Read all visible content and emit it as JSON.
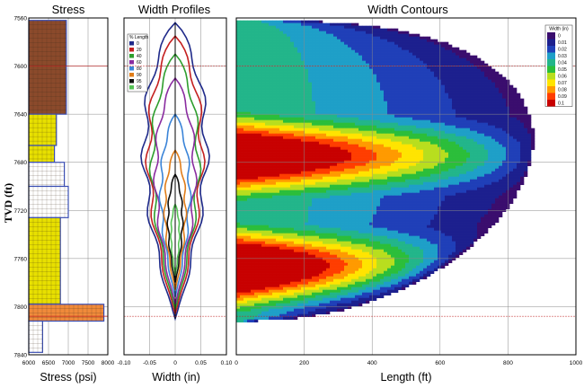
{
  "chart_data": [
    {
      "type": "bar",
      "title": "Stress",
      "xlabel": "Stress (psi)",
      "ylabel": "TVD (ft)",
      "x_ticks": [
        "6000",
        "6500",
        "7000",
        "7500",
        "8000"
      ],
      "y_ticks": [
        "7560",
        "7600",
        "7640",
        "7680",
        "7720",
        "7760",
        "7800",
        "7840"
      ],
      "xlim": [
        6000,
        8000
      ],
      "ylim": [
        7560,
        7840
      ],
      "grid": true,
      "colors": {
        "shale": "#8b4a2b",
        "sand": "#e8e000",
        "zone_top": "#ffffff",
        "base": "#f08a3a",
        "outline": "#3b4fb5"
      },
      "layers": [
        {
          "top": 7562,
          "bottom": 7640,
          "stress": 6950,
          "fill": "shale"
        },
        {
          "top": 7640,
          "bottom": 7666,
          "stress": 6700,
          "fill": "sand"
        },
        {
          "top": 7666,
          "bottom": 7680,
          "stress": 6650,
          "fill": "sand"
        },
        {
          "top": 7680,
          "bottom": 7700,
          "stress": 6900,
          "fill": "zone_top"
        },
        {
          "top": 7700,
          "bottom": 7726,
          "stress": 7000,
          "fill": "zone_top"
        },
        {
          "top": 7726,
          "bottom": 7798,
          "stress": 6800,
          "fill": "sand"
        },
        {
          "top": 7798,
          "bottom": 7812,
          "stress": 7900,
          "fill": "base"
        },
        {
          "top": 7812,
          "bottom": 7838,
          "stress": 6350,
          "fill": "zone_top"
        }
      ]
    },
    {
      "type": "line",
      "title": "Width Profiles",
      "xlabel": "Width (in)",
      "x_ticks": [
        "-0.10",
        "-0.05",
        "0",
        "0.05",
        "0.10"
      ],
      "xlim": [
        -0.1,
        0.1
      ],
      "ylim": [
        7560,
        7840
      ],
      "grid": true,
      "legend": {
        "title": "% Length",
        "position": "top-left",
        "entries": [
          "0",
          "20",
          "40",
          "60",
          "80",
          "90",
          "95",
          "99"
        ]
      },
      "series": [
        {
          "name": "0",
          "color": "#1f2a8a",
          "top": 7564,
          "bottom": 7810,
          "max_width": 0.06
        },
        {
          "name": "20",
          "color": "#c42020",
          "top": 7575,
          "bottom": 7806,
          "max_width": 0.052
        },
        {
          "name": "40",
          "color": "#2e9e2e",
          "top": 7590,
          "bottom": 7802,
          "max_width": 0.045
        },
        {
          "name": "60",
          "color": "#8a2ca0",
          "top": 7610,
          "bottom": 7798,
          "max_width": 0.038
        },
        {
          "name": "80",
          "color": "#3a84d8",
          "top": 7640,
          "bottom": 7792,
          "max_width": 0.028
        },
        {
          "name": "90",
          "color": "#e07d1a",
          "top": 7670,
          "bottom": 7786,
          "max_width": 0.02
        },
        {
          "name": "95",
          "color": "#101010",
          "top": 7690,
          "bottom": 7780,
          "max_width": 0.014
        },
        {
          "name": "99",
          "color": "#55c255",
          "top": 7715,
          "bottom": 7774,
          "max_width": 0.008
        }
      ]
    },
    {
      "type": "heatmap",
      "title": "Width Contours",
      "xlabel": "Length (ft)",
      "x_ticks": [
        "0",
        "200",
        "400",
        "600",
        "800",
        "1000"
      ],
      "xlim": [
        0,
        1000
      ],
      "ylim": [
        7560,
        7840
      ],
      "grid": true,
      "legend": {
        "title": "Width (in)",
        "position": "top-right",
        "entries": [
          "0",
          "0.01",
          "0.02",
          "0.03",
          "0.04",
          "0.05",
          "0.06",
          "0.07",
          "0.08",
          "0.09",
          "0.1"
        ],
        "colors": [
          "#3a0d6e",
          "#1c1f8e",
          "#1f3fb8",
          "#1e9fc8",
          "#22b58a",
          "#2bbe3a",
          "#b8de1e",
          "#ffe400",
          "#ff9a00",
          "#ff3d00",
          "#c80000"
        ]
      },
      "fracture_extent": {
        "top": 7562,
        "bottom": 7812,
        "max_length": 875
      },
      "max_width_zones": [
        {
          "depth": 7675,
          "width_at_wellbore": 0.085
        },
        {
          "depth": 7768,
          "width_at_wellbore": 0.095
        }
      ]
    }
  ],
  "reference_lines": {
    "color": "#c02020",
    "depths": [
      7600,
      7808
    ]
  }
}
